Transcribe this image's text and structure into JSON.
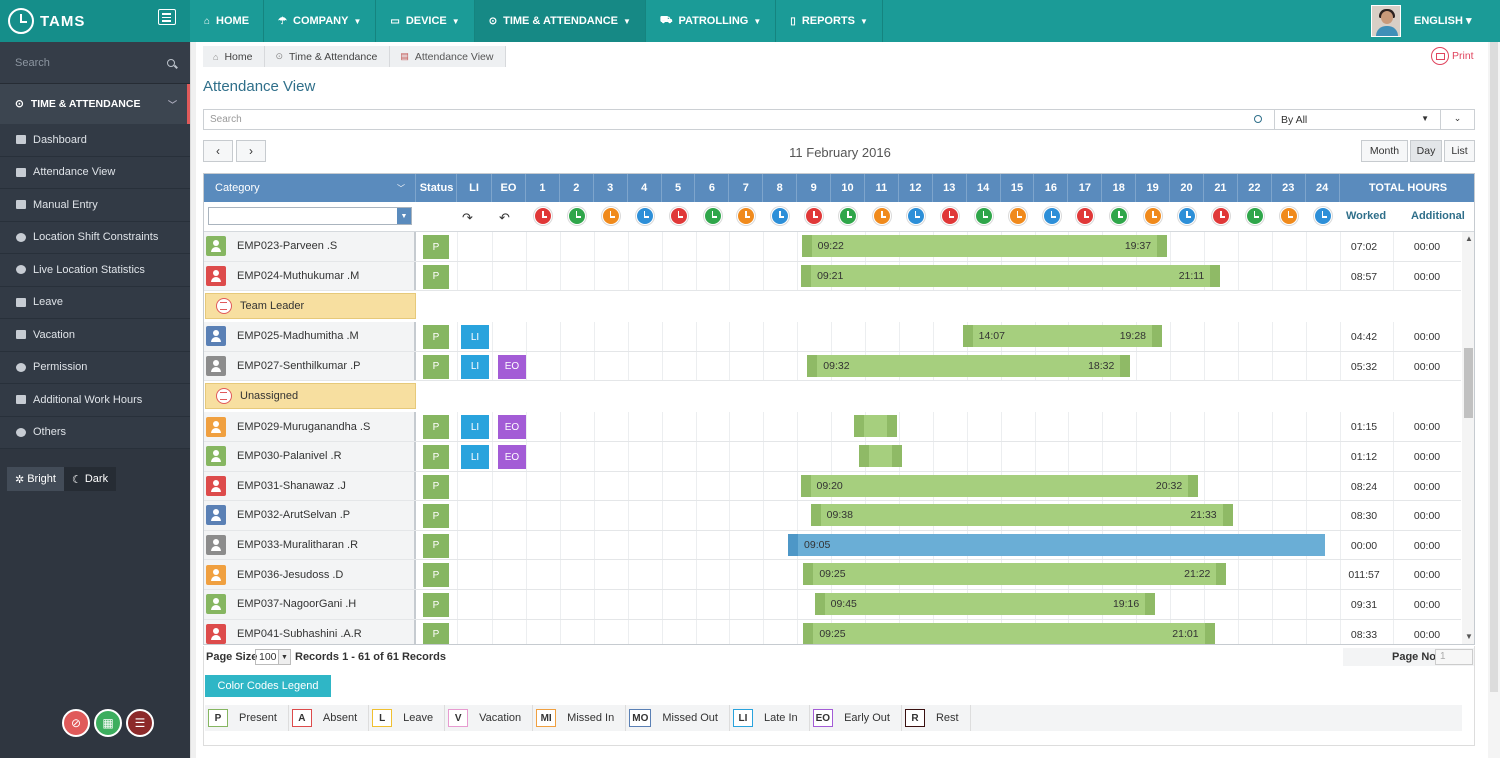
{
  "app": {
    "name": "TAMS"
  },
  "nav": [
    {
      "label": "HOME",
      "icon": "home-icon"
    },
    {
      "label": "COMPANY",
      "icon": "umbrella-icon"
    },
    {
      "label": "DEVICE",
      "icon": "laptop-icon"
    },
    {
      "label": "TIME & ATTENDANCE",
      "icon": "clock-icon"
    },
    {
      "label": "PATROLLING",
      "icon": "road-icon"
    },
    {
      "label": "REPORTS",
      "icon": "file-icon"
    }
  ],
  "language": "ENGLISH",
  "sidebar": {
    "search_placeholder": "Search",
    "section": "TIME & ATTENDANCE",
    "items": [
      {
        "label": "Dashboard"
      },
      {
        "label": "Attendance View"
      },
      {
        "label": "Manual Entry"
      },
      {
        "label": "Location Shift Constraints"
      },
      {
        "label": "Live Location Statistics"
      },
      {
        "label": "Leave"
      },
      {
        "label": "Vacation"
      },
      {
        "label": "Permission"
      },
      {
        "label": "Additional Work Hours"
      },
      {
        "label": "Others"
      }
    ],
    "theme_bright": "Bright",
    "theme_dark": "Dark"
  },
  "breadcrumb": [
    "Home",
    "Time & Attendance",
    "Attendance View"
  ],
  "print_label": "Print",
  "page_title": "Attendance View",
  "search": {
    "placeholder": "Search",
    "filter": "By All"
  },
  "date": "11 February 2016",
  "view_buttons": [
    "Month",
    "Day",
    "List"
  ],
  "grid": {
    "category_label": "Category",
    "status_label": "Status",
    "li_label": "LI",
    "eo_label": "EO",
    "hours": [
      "1",
      "2",
      "3",
      "4",
      "5",
      "6",
      "7",
      "8",
      "9",
      "10",
      "11",
      "12",
      "13",
      "14",
      "15",
      "16",
      "17",
      "18",
      "19",
      "20",
      "21",
      "22",
      "23",
      "24"
    ],
    "total_label": "TOTAL HOURS",
    "worked_label": "Worked",
    "additional_label": "Additional"
  },
  "rows": [
    {
      "type": "emp",
      "name": "EMP023-Parveen .S",
      "avatar": "#86b661",
      "status": "P",
      "li": false,
      "eo": false,
      "in": "09:22",
      "out": "19:37",
      "worked": "07:02",
      "additional": "00:00"
    },
    {
      "type": "emp",
      "name": "EMP024-Muthukumar .M",
      "avatar": "#dd4b4b",
      "status": "P",
      "li": false,
      "eo": false,
      "in": "09:21",
      "out": "21:11",
      "worked": "08:57",
      "additional": "00:00"
    },
    {
      "type": "group",
      "name": "Team Leader"
    },
    {
      "type": "emp",
      "name": "EMP025-Madhumitha .M",
      "avatar": "#5a80b5",
      "status": "P",
      "li": true,
      "eo": false,
      "in": "14:07",
      "out": "19:28",
      "worked": "04:42",
      "additional": "00:00"
    },
    {
      "type": "emp",
      "name": "EMP027-Senthilkumar .P",
      "avatar": "#8c8c8c",
      "status": "P",
      "li": true,
      "eo": true,
      "in": "09:32",
      "out": "18:32",
      "worked": "05:32",
      "additional": "00:00"
    },
    {
      "type": "group",
      "name": "Unassigned"
    },
    {
      "type": "emp",
      "name": "EMP029-Muruganandha .S",
      "avatar": "#f0a040",
      "status": "P",
      "li": true,
      "eo": true,
      "in": "",
      "out": "",
      "worked": "01:15",
      "additional": "00:00"
    },
    {
      "type": "emp",
      "name": "EMP030-Palanivel .R",
      "avatar": "#86b661",
      "status": "P",
      "li": true,
      "eo": true,
      "in": "",
      "out": "",
      "worked": "01:12",
      "additional": "00:00"
    },
    {
      "type": "emp",
      "name": "EMP031-Shanawaz .J",
      "avatar": "#dd4b4b",
      "status": "P",
      "li": false,
      "eo": false,
      "in": "09:20",
      "out": "20:32",
      "worked": "08:24",
      "additional": "00:00"
    },
    {
      "type": "emp",
      "name": "EMP032-ArutSelvan .P",
      "avatar": "#5a80b5",
      "status": "P",
      "li": false,
      "eo": false,
      "in": "09:38",
      "out": "21:33",
      "worked": "08:30",
      "additional": "00:00"
    },
    {
      "type": "emp",
      "name": "EMP033-Muralitharan .R",
      "avatar": "#8c8c8c",
      "status": "P",
      "li": false,
      "eo": false,
      "in": "09:05",
      "out": "",
      "worked": "00:00",
      "additional": "00:00"
    },
    {
      "type": "emp",
      "name": "EMP036-Jesudoss .D",
      "avatar": "#f0a040",
      "status": "P",
      "li": false,
      "eo": false,
      "in": "09:25",
      "out": "21:22",
      "worked": "011:57",
      "additional": "00:00"
    },
    {
      "type": "emp",
      "name": "EMP037-NagoorGani .H",
      "avatar": "#86b661",
      "status": "P",
      "li": false,
      "eo": false,
      "in": "09:45",
      "out": "19:16",
      "worked": "09:31",
      "additional": "00:00"
    },
    {
      "type": "emp",
      "name": "EMP041-Subhashini .A.R",
      "avatar": "#dd4b4b",
      "status": "P",
      "li": false,
      "eo": false,
      "in": "09:25",
      "out": "21:01",
      "worked": "08:33",
      "additional": "00:00"
    }
  ],
  "pager": {
    "page_size_label": "Page Size",
    "page_size": "100",
    "records": "Records 1 - 61 of 61 Records",
    "page_no_label": "Page No",
    "page_no": "1"
  },
  "legend_title": "Color Codes Legend",
  "legend": [
    {
      "code": "P",
      "label": "Present",
      "color": "#86b661"
    },
    {
      "code": "A",
      "label": "Absent",
      "color": "#dd4b4b"
    },
    {
      "code": "L",
      "label": "Leave",
      "color": "#f0c030"
    },
    {
      "code": "V",
      "label": "Vacation",
      "color": "#e79bd0"
    },
    {
      "code": "MI",
      "label": "Missed In",
      "color": "#f0a040"
    },
    {
      "code": "MO",
      "label": "Missed Out",
      "color": "#5a80b5"
    },
    {
      "code": "LI",
      "label": "Late In",
      "color": "#29a3dd"
    },
    {
      "code": "EO",
      "label": "Early Out",
      "color": "#a35cd6"
    },
    {
      "code": "R",
      "label": "Rest",
      "color": "#3a1010"
    }
  ],
  "colors": {
    "topbar": "#1b9b97",
    "sidebar": "#2f3640",
    "grid_header": "#5a8bbd",
    "present": "#86b661",
    "bar_green": "#a6cf7e",
    "bar_blue": "#6aaed6",
    "late_in": "#29a3dd",
    "early_out": "#a35cd6",
    "group_bg": "#f7dfa0"
  }
}
